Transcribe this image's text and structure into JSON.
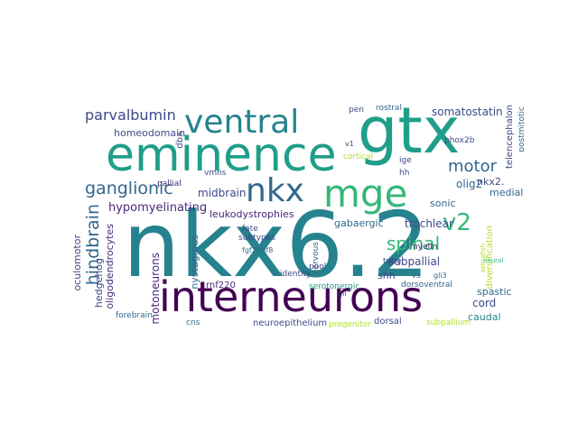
{
  "palette": {
    "yellow_green": "#b5de2b",
    "green": "#35b779",
    "teal": "#1f9e89",
    "blue_teal": "#26828e",
    "blue": "#31688e",
    "indigo": "#3e4989",
    "purple": "#482878",
    "dark_purple": "#440154"
  },
  "words": {
    "nkx62": "nkx6.2",
    "gtx": "gtx",
    "eminence": "eminence",
    "interneurons": "interneurons",
    "ventral": "ventral",
    "mge": "mge",
    "nkx": "nkx",
    "parvalbumin": "parvalbumin",
    "ganglionic": "ganglionic",
    "hindbrain": "hindbrain",
    "spinal": "spinal",
    "v2": "v2",
    "motor": "motor",
    "somatostatin": "somatostatin",
    "hypomyelinating": "hypomyelinating",
    "homeodomain": "homeodomain",
    "olig2": "olig2",
    "nkx2": "nkx2.",
    "sonic": "sonic",
    "midbrain": "midbrain",
    "leukodystrophies": "leukodystrophies",
    "oligodendrocytes": "oligodendrocytes",
    "oculomotor": "oculomotor",
    "hedgehog": "hedgehog",
    "motoneurons": "motoneurons",
    "nystagmus": "nystagmus",
    "gabaergic": "gabaergic",
    "trochlear": "trochlear",
    "subpallial": "subpallial",
    "spastic": "spastic",
    "cord": "cord",
    "caudal": "caudal",
    "shh": "shh",
    "telencephalon": "telencephalon",
    "medial": "medial",
    "phox2b": "phox2b",
    "rostral": "rostral",
    "forebrain": "forebrain",
    "neuroepithelium": "neuroepithelium",
    "dorsal": "dorsal",
    "rnf220": "rnf220",
    "cns": "cns",
    "subtypes": "subtypes",
    "dorsoventral": "dorsoventral",
    "tube": "tube",
    "myelin": "myelin",
    "nervous": "nervous",
    "pool": "pool",
    "identity": "identity",
    "serotonergic": "serotonergic",
    "progenitor": "progenitor",
    "fate": "fate",
    "fgf2": "fgf2/fgf8",
    "dbx": "dbx",
    "vmns": "vmns",
    "gli3": "gli3",
    "gli": "gli",
    "v3": "v3",
    "postmitotic": "postmitotic",
    "diversification": "diversification",
    "ige": "ige",
    "hh": "hh",
    "cortical": "cortical",
    "pallial": "pallial",
    "pen": "pen",
    "v1": "v1",
    "zebrafish": "zebrafish",
    "neural": "neural",
    "subpallium": "subpallium"
  }
}
